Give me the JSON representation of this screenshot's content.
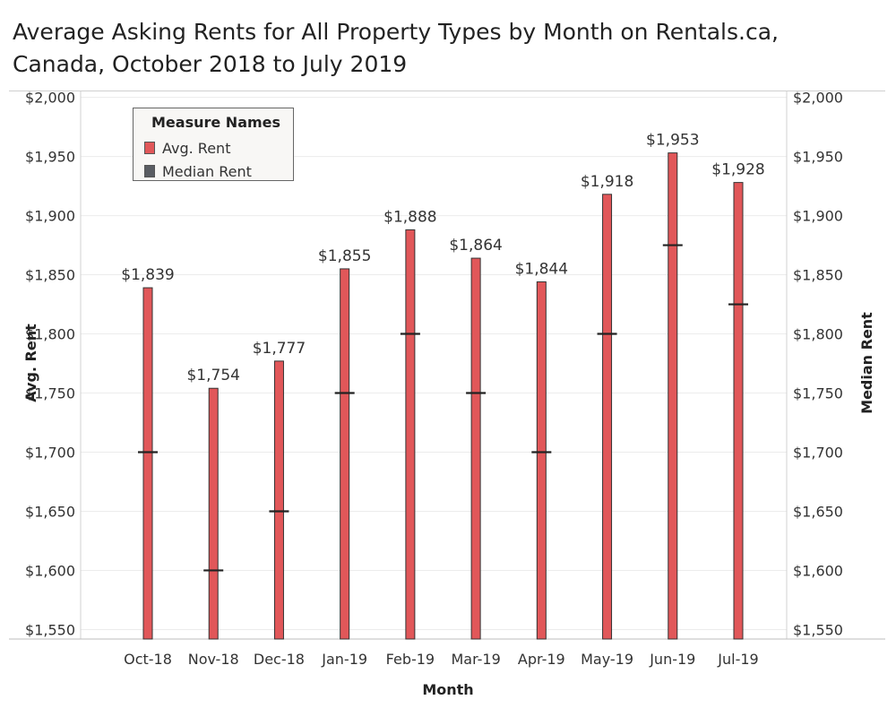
{
  "title_lines": [
    "Average Asking Rents for All Property Types by Month on Rentals.ca,",
    "Canada, October 2018 to July 2019"
  ],
  "legend": {
    "title": "Measure Names",
    "items": [
      {
        "label": "Avg. Rent",
        "color": "#e15759"
      },
      {
        "label": "Median Rent",
        "color": "#5a5d63"
      }
    ]
  },
  "chart_data": {
    "type": "bar",
    "title": "Average Asking Rents for All Property Types by Month on Rentals.ca, Canada, October 2018 to July 2019",
    "xlabel": "Month",
    "ylabel": "Avg. Rent",
    "y2label": "Median Rent",
    "categories": [
      "Oct-18",
      "Nov-18",
      "Dec-18",
      "Jan-19",
      "Feb-19",
      "Mar-19",
      "Apr-19",
      "May-19",
      "Jun-19",
      "Jul-19"
    ],
    "series": [
      {
        "name": "Avg. Rent",
        "color": "#e15759",
        "values": [
          1839,
          1754,
          1777,
          1855,
          1888,
          1864,
          1844,
          1918,
          1953,
          1928
        ]
      },
      {
        "name": "Median Rent",
        "color": "#5a5d63",
        "values": [
          1700,
          1600,
          1650,
          1750,
          1800,
          1750,
          1700,
          1800,
          1875,
          1825
        ]
      }
    ],
    "data_labels": [
      "$1,839",
      "$1,754",
      "$1,777",
      "$1,855",
      "$1,888",
      "$1,864",
      "$1,844",
      "$1,918",
      "$1,953",
      "$1,928"
    ],
    "ylim": [
      1542,
      2005
    ],
    "yticks": [
      1550,
      1600,
      1650,
      1700,
      1750,
      1800,
      1850,
      1900,
      1950,
      2000
    ],
    "ytick_labels": [
      "$1,550",
      "$1,600",
      "$1,650",
      "$1,700",
      "$1,750",
      "$1,800",
      "$1,850",
      "$1,900",
      "$1,950",
      "$2,000"
    ],
    "grid": true,
    "legend_position": "top-left"
  }
}
